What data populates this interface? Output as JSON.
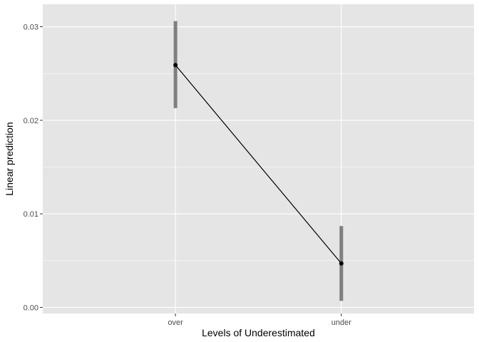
{
  "chart_data": {
    "type": "line",
    "categories": [
      "over",
      "under"
    ],
    "series": [
      {
        "values": [
          0.0259,
          0.0047
        ],
        "lower": [
          0.0213,
          0.0007
        ],
        "upper": [
          0.0306,
          0.0087
        ]
      }
    ],
    "xlabel": "Levels of Underestimated",
    "ylabel": "Linear prediction",
    "ylim": [
      -0.00065,
      0.0324
    ],
    "yticks": [
      0.0,
      0.01,
      0.02,
      0.03
    ],
    "ytick_labels": [
      "0.00",
      "0.01",
      "0.02",
      "0.03"
    ],
    "grid": true,
    "colors": {
      "panel": "#e5e5e5",
      "grid_major": "#ffffff",
      "interval": "#7f7f7f",
      "line": "#000000",
      "point": "#000000"
    }
  }
}
